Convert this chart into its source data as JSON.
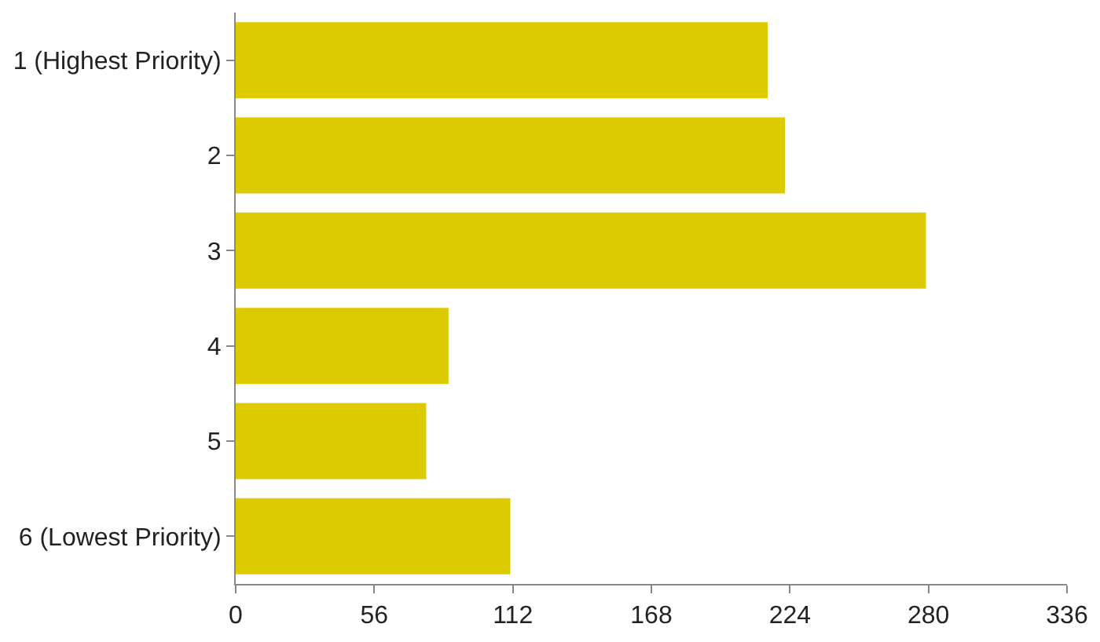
{
  "chart_data": {
    "type": "bar",
    "orientation": "horizontal",
    "categories": [
      "1 (Highest Priority)",
      "2",
      "3",
      "4",
      "5",
      "6 (Lowest Priority)"
    ],
    "values": [
      215,
      222,
      279,
      86,
      77,
      111
    ],
    "color": "#dccb00",
    "xlim": [
      0,
      336
    ],
    "xticks": [
      0,
      56,
      112,
      168,
      224,
      280,
      336
    ]
  }
}
